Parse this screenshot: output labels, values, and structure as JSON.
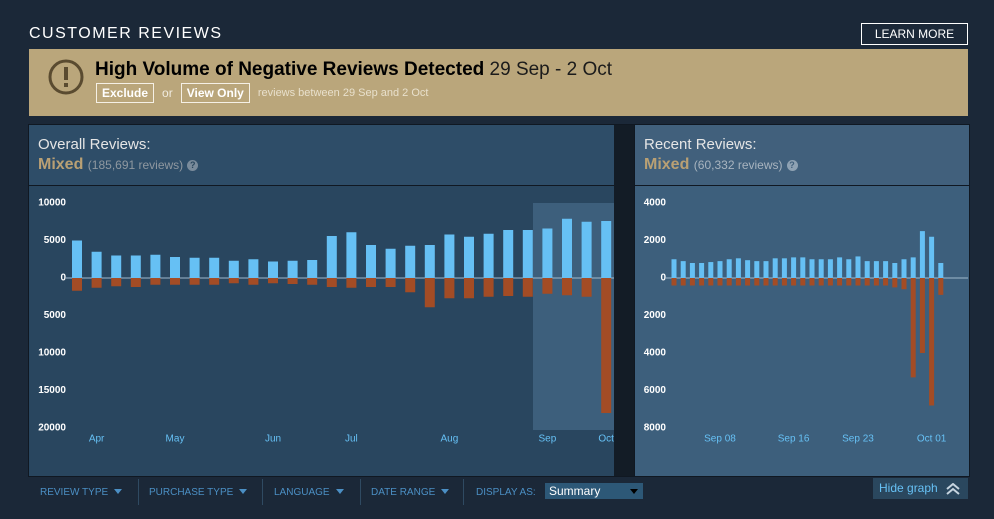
{
  "header": {
    "title": "CUSTOMER REVIEWS",
    "learn_more": "LEARN MORE"
  },
  "alert": {
    "title": "High Volume of Negative Reviews Detected",
    "dates": "29 Sep - 2 Oct",
    "exclude": "Exclude",
    "or": "or",
    "view_only": "View Only",
    "note": "reviews between 29 Sep and 2 Oct"
  },
  "overall": {
    "heading": "Overall Reviews:",
    "rating": "Mixed",
    "count": "(185,691 reviews)",
    "help": "?"
  },
  "recent": {
    "heading": "Recent Reviews:",
    "rating": "Mixed",
    "count": "(60,332 reviews)",
    "help": "?"
  },
  "chart_data": [
    {
      "type": "bar",
      "categories": [
        null,
        "Apr",
        null,
        null,
        null,
        "May",
        null,
        null,
        null,
        null,
        "Jun",
        null,
        null,
        null,
        "Jul",
        null,
        null,
        null,
        null,
        "Aug",
        null,
        null,
        null,
        null,
        "Sep",
        null,
        null,
        "Oct"
      ],
      "series": [
        {
          "color": "#66c0f4",
          "values": [
            5000,
            3500,
            3000,
            3000,
            3100,
            2800,
            2700,
            2700,
            2300,
            2500,
            2200,
            2300,
            2400,
            5600,
            6100,
            4400,
            3900,
            4300,
            4400,
            5800,
            5500,
            5900,
            6400,
            6400,
            6600,
            7900,
            7500,
            7600
          ]
        },
        {
          "color": "#a34c25",
          "values": [
            -1700,
            -1300,
            -1100,
            -1200,
            -900,
            -900,
            -900,
            -900,
            -700,
            -900,
            -700,
            -800,
            -900,
            -1200,
            -1300,
            -1200,
            -1200,
            -1900,
            -3900,
            -2700,
            -2700,
            -2500,
            -2400,
            -2500,
            -2100,
            -2300,
            -2500,
            -18000
          ]
        }
      ],
      "ylim": [
        -20000,
        10000
      ],
      "yticks": [
        10000,
        5000,
        0,
        {
          "value": -5000,
          "label": "5000"
        },
        {
          "value": -10000,
          "label": "10000"
        },
        {
          "value": -15000,
          "label": "15000"
        },
        {
          "value": -20000,
          "label": "20000"
        }
      ]
    },
    {
      "type": "bar",
      "categories": [
        null,
        null,
        null,
        null,
        null,
        "Sep 08",
        null,
        null,
        null,
        null,
        null,
        null,
        null,
        "Sep 16",
        null,
        null,
        null,
        null,
        null,
        null,
        "Sep 23",
        null,
        null,
        null,
        null,
        null,
        null,
        null,
        "Oct 01",
        null
      ],
      "series": [
        {
          "color": "#66c0f4",
          "values": [
            1000,
            900,
            800,
            800,
            850,
            900,
            1000,
            1050,
            950,
            900,
            900,
            1050,
            1050,
            1100,
            1100,
            1000,
            1000,
            1000,
            1100,
            1000,
            1150,
            900,
            900,
            900,
            800,
            1000,
            1100,
            2500,
            2200,
            800
          ]
        },
        {
          "color": "#a34c25",
          "values": [
            -400,
            -400,
            -400,
            -400,
            -400,
            -400,
            -400,
            -400,
            -400,
            -400,
            -400,
            -400,
            -400,
            -400,
            -400,
            -400,
            -400,
            -400,
            -400,
            -400,
            -400,
            -400,
            -400,
            -400,
            -500,
            -600,
            -5300,
            -4000,
            -6800,
            -900
          ]
        }
      ],
      "ylim": [
        -8000,
        4000
      ],
      "yticks": [
        4000,
        2000,
        0,
        {
          "value": -2000,
          "label": "2000"
        },
        {
          "value": -4000,
          "label": "4000"
        },
        {
          "value": -6000,
          "label": "6000"
        },
        {
          "value": -8000,
          "label": "8000"
        }
      ]
    }
  ],
  "filters": {
    "review_type": "REVIEW TYPE",
    "purchase_type": "PURCHASE TYPE",
    "language": "LANGUAGE",
    "date_range": "DATE RANGE",
    "display_as": "DISPLAY AS:",
    "display_value": "Summary",
    "hide_graph": "Hide graph"
  }
}
